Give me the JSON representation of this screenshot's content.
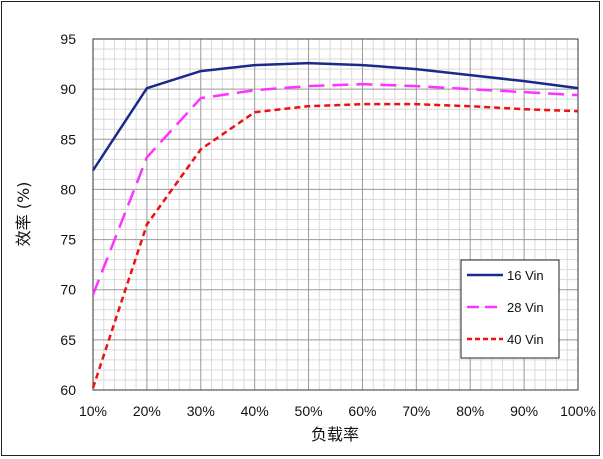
{
  "chart_data": {
    "type": "line",
    "xlabel": "负载率",
    "ylabel": "效率 (%)",
    "categories": [
      "10%",
      "20%",
      "30%",
      "40%",
      "50%",
      "60%",
      "70%",
      "80%",
      "90%",
      "100%"
    ],
    "x": [
      10,
      20,
      30,
      40,
      50,
      60,
      70,
      80,
      90,
      100
    ],
    "xlim": [
      10,
      100
    ],
    "ylim": [
      60,
      95
    ],
    "yticks": [
      60,
      65,
      70,
      75,
      80,
      85,
      90,
      95
    ],
    "grid": true,
    "legend_position": "bottom-right",
    "series": [
      {
        "name": "16 Vin",
        "color": "#1a2a8c",
        "dash": "solid",
        "values": [
          81.9,
          90.1,
          91.8,
          92.4,
          92.6,
          92.4,
          92.0,
          91.4,
          90.8,
          90.1
        ]
      },
      {
        "name": "28 Vin",
        "color": "#ff33ff",
        "dash": "long-dash",
        "values": [
          69.5,
          83.2,
          89.1,
          89.9,
          90.3,
          90.5,
          90.3,
          90.0,
          89.7,
          89.4
        ]
      },
      {
        "name": "40 Vin",
        "color": "#ee1111",
        "dash": "short-dash",
        "values": [
          60.2,
          76.5,
          84.0,
          87.7,
          88.3,
          88.5,
          88.5,
          88.3,
          88.0,
          87.8
        ]
      }
    ]
  }
}
